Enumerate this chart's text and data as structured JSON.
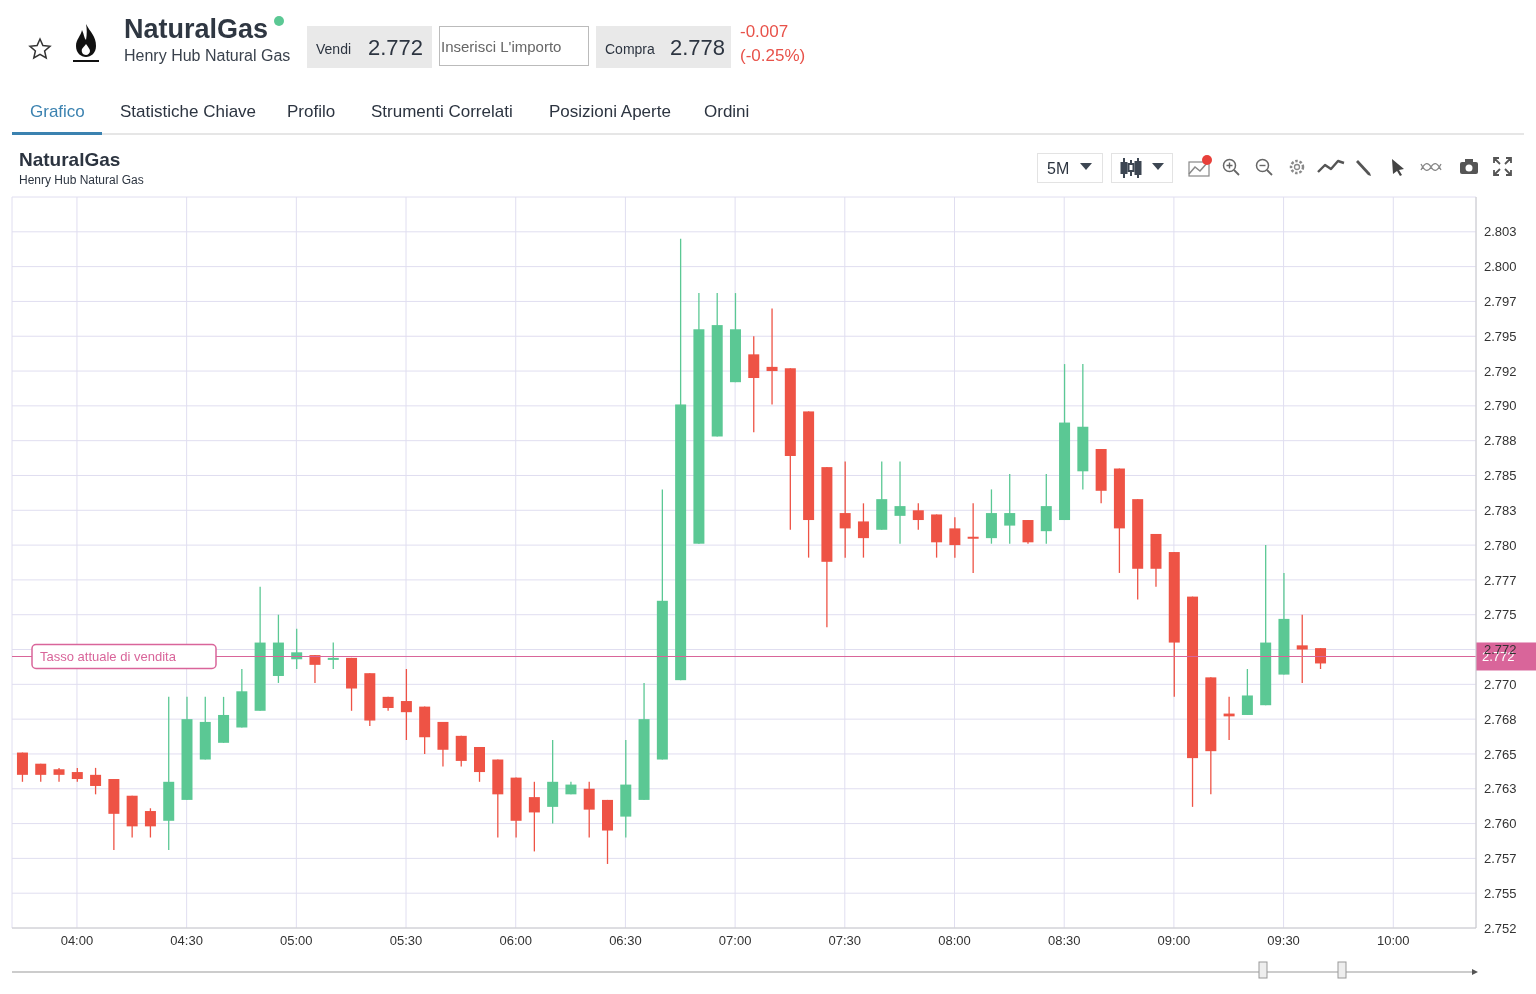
{
  "chart_data": {
    "type": "candlestick",
    "title": "NaturalGas",
    "subtitle": "Henry Hub Natural Gas",
    "annotations": [
      "Vendi",
      "2.772",
      "Inserisci L'importo",
      "Compra",
      "2.778",
      "-0.007",
      "(-0.25%)",
      "Grafico",
      "Statistiche Chiave",
      "Profilo",
      "Strumenti Correlati",
      "Posizioni Aperte",
      "Ordini",
      "5M"
    ],
    "x": [
      3.75,
      3.8333,
      3.9167,
      4,
      4.0833,
      4.1667,
      4.25,
      4.3333,
      4.4167,
      4.5,
      4.5833,
      4.6667,
      4.75,
      4.8333,
      4.9167,
      5,
      5.0833,
      5.1667,
      5.25,
      5.3333,
      5.4167,
      5.5,
      5.5833,
      5.6667,
      5.75,
      5.8333,
      5.9167,
      6,
      6.0833,
      6.1667,
      6.25,
      6.3333,
      6.4167,
      6.5,
      6.5833,
      6.6667,
      6.75,
      6.8333,
      6.9167,
      7,
      7.0833,
      7.1667,
      7.25,
      7.3333,
      7.4167,
      7.5,
      7.5833,
      7.6667,
      7.75,
      7.8333,
      7.9167,
      8,
      8.0833,
      8.1667,
      8.25,
      8.3333,
      8.4167,
      8.5,
      8.5833,
      8.6667,
      8.75,
      8.8333,
      8.9167,
      9,
      9.0833,
      9.1667,
      9.25,
      9.3333,
      9.4167,
      9.5,
      9.5833,
      9.6667
    ],
    "ohlc": [
      [
        2.7651,
        2.7651,
        2.763,
        2.7635
      ],
      [
        2.7643,
        2.7643,
        2.763,
        2.7635
      ],
      [
        2.7639,
        2.764,
        2.763,
        2.7635
      ],
      [
        2.7637,
        2.764,
        2.763,
        2.7632
      ],
      [
        2.7635,
        2.764,
        2.7621,
        2.7627
      ],
      [
        2.7632,
        2.7632,
        2.7581,
        2.7607
      ],
      [
        2.762,
        2.762,
        2.759,
        2.7598
      ],
      [
        2.7609,
        2.7611,
        2.759,
        2.7598
      ],
      [
        2.7602,
        2.7691,
        2.7581,
        2.763
      ],
      [
        2.7617,
        2.7691,
        2.7617,
        2.7675
      ],
      [
        2.7646,
        2.7691,
        2.7646,
        2.7673
      ],
      [
        2.7658,
        2.7691,
        2.7658,
        2.7678
      ],
      [
        2.7669,
        2.7711,
        2.7669,
        2.7695
      ],
      [
        2.7681,
        2.777,
        2.7681,
        2.773
      ],
      [
        2.7706,
        2.775,
        2.7701,
        2.773
      ],
      [
        2.7718,
        2.774,
        2.7711,
        2.7723
      ],
      [
        2.7721,
        2.7721,
        2.7701,
        2.7714
      ],
      [
        2.7718,
        2.773,
        2.7711,
        2.7719
      ],
      [
        2.7719,
        2.7719,
        2.7681,
        2.7697
      ],
      [
        2.7708,
        2.7708,
        2.767,
        2.7674
      ],
      [
        2.7691,
        2.7691,
        2.7681,
        2.7683
      ],
      [
        2.7688,
        2.7711,
        2.766,
        2.768
      ],
      [
        2.7684,
        2.7684,
        2.765,
        2.7662
      ],
      [
        2.7673,
        2.7673,
        2.7641,
        2.7653
      ],
      [
        2.7663,
        2.7663,
        2.7641,
        2.7645
      ],
      [
        2.7655,
        2.7655,
        2.763,
        2.7637
      ],
      [
        2.7646,
        2.7646,
        2.759,
        2.7621
      ],
      [
        2.7633,
        2.7633,
        2.759,
        2.7602
      ],
      [
        2.7619,
        2.763,
        2.758,
        2.7608
      ],
      [
        2.7612,
        2.766,
        2.76,
        2.763
      ],
      [
        2.7621,
        2.763,
        2.7621,
        2.7628
      ],
      [
        2.7625,
        2.763,
        2.759,
        2.761
      ],
      [
        2.7617,
        2.7617,
        2.7571,
        2.7595
      ],
      [
        2.7605,
        2.766,
        2.759,
        2.7628
      ],
      [
        2.7617,
        2.7701,
        2.7617,
        2.7675
      ],
      [
        2.7646,
        2.784,
        2.7646,
        2.776
      ],
      [
        2.7703,
        2.802,
        2.7703,
        2.7901
      ],
      [
        2.7801,
        2.7981,
        2.7801,
        2.7955
      ],
      [
        2.7878,
        2.7981,
        2.7878,
        2.7958
      ],
      [
        2.7917,
        2.7981,
        2.7917,
        2.7955
      ],
      [
        2.7937,
        2.795,
        2.7881,
        2.792
      ],
      [
        2.7928,
        2.797,
        2.7901,
        2.7925
      ],
      [
        2.7927,
        2.7927,
        2.7811,
        2.7864
      ],
      [
        2.7896,
        2.7896,
        2.7791,
        2.7818
      ],
      [
        2.7856,
        2.7856,
        2.7741,
        2.7788
      ],
      [
        2.7823,
        2.786,
        2.7791,
        2.7812
      ],
      [
        2.7817,
        2.783,
        2.7791,
        2.7805
      ],
      [
        2.7811,
        2.786,
        2.7811,
        2.7833
      ],
      [
        2.7821,
        2.786,
        2.7801,
        2.7828
      ],
      [
        2.7825,
        2.783,
        2.7811,
        2.7818
      ],
      [
        2.7822,
        2.7822,
        2.7791,
        2.7802
      ],
      [
        2.7812,
        2.782,
        2.7791,
        2.78
      ],
      [
        2.7806,
        2.783,
        2.778,
        2.7805
      ],
      [
        2.7805,
        2.784,
        2.7801,
        2.7823
      ],
      [
        2.7814,
        2.7851,
        2.7801,
        2.7823
      ],
      [
        2.7818,
        2.7818,
        2.7801,
        2.7802
      ],
      [
        2.781,
        2.7851,
        2.7801,
        2.7828
      ],
      [
        2.7818,
        2.793,
        2.7818,
        2.7888
      ],
      [
        2.7853,
        2.793,
        2.784,
        2.7885
      ],
      [
        2.7869,
        2.7869,
        2.783,
        2.7839
      ],
      [
        2.7855,
        2.7855,
        2.778,
        2.7812
      ],
      [
        2.7833,
        2.7833,
        2.7761,
        2.7783
      ],
      [
        2.7808,
        2.7808,
        2.777,
        2.7783
      ],
      [
        2.7795,
        2.7795,
        2.7691,
        2.773
      ],
      [
        2.7763,
        2.7763,
        2.7612,
        2.7647
      ],
      [
        2.7705,
        2.7705,
        2.7621,
        2.7652
      ],
      [
        2.7679,
        2.7691,
        2.766,
        2.7677
      ],
      [
        2.7678,
        2.7711,
        2.7678,
        2.7692
      ],
      [
        2.7685,
        2.78,
        2.7685,
        2.773
      ],
      [
        2.7707,
        2.778,
        2.7707,
        2.7747
      ],
      [
        2.7728,
        2.775,
        2.7701,
        2.7725
      ],
      [
        2.7726,
        2.7726,
        2.7711,
        2.7715
      ]
    ],
    "colors": [
      "#ee5345",
      "#ee5345",
      "#ee5345",
      "#ee5345",
      "#ee5345",
      "#ee5345",
      "#ee5345",
      "#ee5345",
      "#5bc894",
      "#5bc894",
      "#5bc894",
      "#5bc894",
      "#5bc894",
      "#5bc894",
      "#5bc894",
      "#5bc894",
      "#ee5345",
      "#5bc894",
      "#ee5345",
      "#ee5345",
      "#ee5345",
      "#ee5345",
      "#ee5345",
      "#ee5345",
      "#ee5345",
      "#ee5345",
      "#ee5345",
      "#ee5345",
      "#ee5345",
      "#5bc894",
      "#5bc894",
      "#ee5345",
      "#ee5345",
      "#5bc894",
      "#5bc894",
      "#5bc894",
      "#5bc894",
      "#5bc894",
      "#5bc894",
      "#5bc894",
      "#ee5345",
      "#ee5345",
      "#ee5345",
      "#ee5345",
      "#ee5345",
      "#ee5345",
      "#ee5345",
      "#5bc894",
      "#5bc894",
      "#ee5345",
      "#ee5345",
      "#ee5345",
      "#ee5345",
      "#5bc894",
      "#5bc894",
      "#ee5345",
      "#5bc894",
      "#5bc894",
      "#5bc894",
      "#ee5345",
      "#ee5345",
      "#ee5345",
      "#ee5345",
      "#ee5345",
      "#ee5345",
      "#ee5345",
      "#ee5345",
      "#5bc894",
      "#5bc894",
      "#5bc894",
      "#ee5345",
      "#ee5345"
    ],
    "xlim": [
      3.704,
      10.377
    ],
    "xticks": [
      {
        "value": 4,
        "label": "04:00"
      },
      {
        "value": 4.5,
        "label": "04:30"
      },
      {
        "value": 5,
        "label": "05:00"
      },
      {
        "value": 5.5,
        "label": "05:30"
      },
      {
        "value": 6,
        "label": "06:00"
      },
      {
        "value": 6.5,
        "label": "06:30"
      },
      {
        "value": 7,
        "label": "07:00"
      },
      {
        "value": 7.5,
        "label": "07:30"
      },
      {
        "value": 8,
        "label": "08:00"
      },
      {
        "value": 8.5,
        "label": "08:30"
      },
      {
        "value": 9,
        "label": "09:00"
      },
      {
        "value": 9.5,
        "label": "09:30"
      },
      {
        "value": 10,
        "label": "10:00"
      }
    ],
    "ylim": [
      2.7525,
      2.805
    ],
    "yticks": [
      {
        "value": 2.7525,
        "label": "2.752"
      },
      {
        "value": 2.755,
        "label": "2.755"
      },
      {
        "value": 2.7575,
        "label": "2.757"
      },
      {
        "value": 2.76,
        "label": "2.760"
      },
      {
        "value": 2.7625,
        "label": "2.763"
      },
      {
        "value": 2.765,
        "label": "2.765"
      },
      {
        "value": 2.7675,
        "label": "2.768"
      },
      {
        "value": 2.77,
        "label": "2.770"
      },
      {
        "value": 2.7725,
        "label": "2.772"
      },
      {
        "value": 2.775,
        "label": "2.775"
      },
      {
        "value": 2.7775,
        "label": "2.777"
      },
      {
        "value": 2.78,
        "label": "2.780"
      },
      {
        "value": 2.7825,
        "label": "2.783"
      },
      {
        "value": 2.785,
        "label": "2.785"
      },
      {
        "value": 2.7875,
        "label": "2.788"
      },
      {
        "value": 2.79,
        "label": "2.790"
      },
      {
        "value": 2.7925,
        "label": "2.792"
      },
      {
        "value": 2.795,
        "label": "2.795"
      },
      {
        "value": 2.7975,
        "label": "2.797"
      },
      {
        "value": 2.8,
        "label": "2.800"
      },
      {
        "value": 2.8025,
        "label": "2.803"
      }
    ],
    "ref_lines": [
      {
        "axis": "y",
        "value": 2.772,
        "label": "Tasso attuale di vendita",
        "color": "#d9659a"
      }
    ],
    "grid": true
  }
}
